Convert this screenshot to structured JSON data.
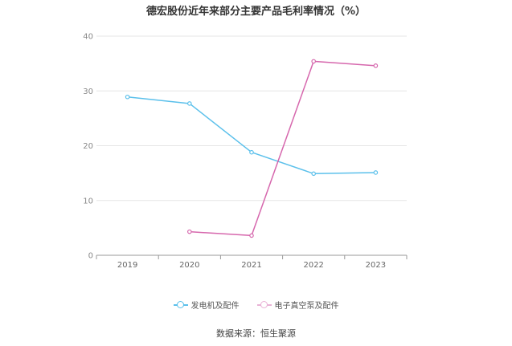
{
  "chart_data": {
    "type": "line",
    "title": "德宏股份近年来部分主要产品毛利率情况（%）",
    "categories": [
      "2019",
      "2020",
      "2021",
      "2022",
      "2023"
    ],
    "ylim": [
      0,
      40
    ],
    "yticks": [
      0,
      10,
      20,
      30,
      40
    ],
    "grid": true,
    "legend_position": "bottom",
    "series": [
      {
        "name": "发电机及配件",
        "color": "#5bc0eb",
        "values": [
          28.9,
          27.7,
          18.8,
          14.9,
          15.1
        ]
      },
      {
        "name": "电子真空泵及配件",
        "color": "#d667ad",
        "values": [
          null,
          4.3,
          3.6,
          35.4,
          34.6
        ]
      }
    ]
  },
  "source_text": "数据来源：恒生聚源"
}
